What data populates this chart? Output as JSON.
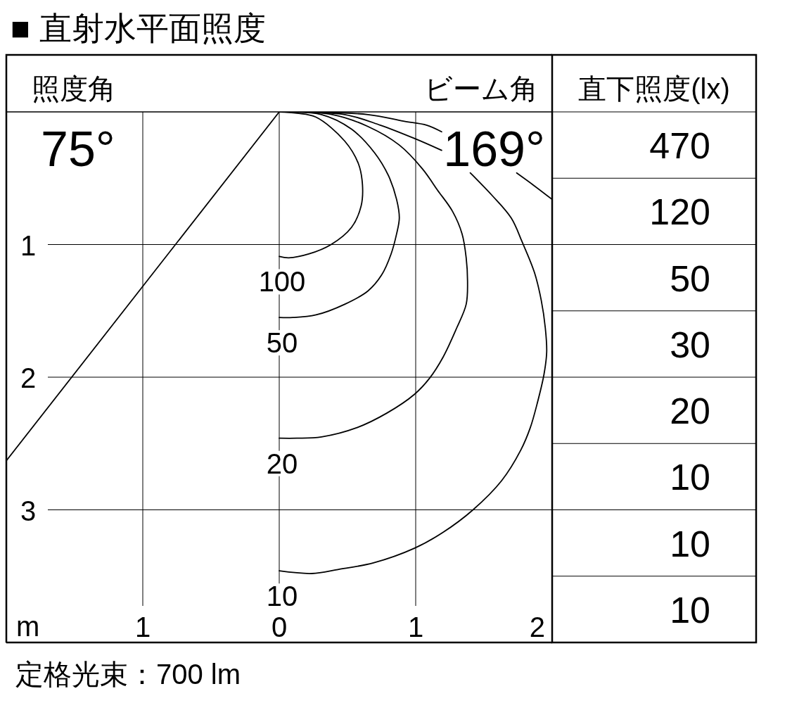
{
  "chart_data": [
    {
      "type": "line",
      "title": "■ 直射水平面照度",
      "xlabel": "m",
      "annotations": [
        "照度角",
        "75°",
        "ビーム角",
        "169°",
        "定格光束：700 lm"
      ],
      "xlim": [
        -2,
        2
      ],
      "xticks": [
        {
          "value": -1,
          "label": "1"
        },
        0,
        1,
        2
      ],
      "ylim": [
        4,
        0
      ],
      "yticks": [
        1,
        2,
        3
      ],
      "grid": true,
      "series": [
        {
          "name": "100",
          "color": "#000000",
          "x": [
            0,
            0.13,
            0.27,
            0.48,
            0.58,
            0.61,
            0.6,
            0.53,
            0.38,
            0.22,
            0.07,
            0
          ],
          "values": [
            0,
            0.01,
            0.04,
            0.22,
            0.39,
            0.55,
            0.71,
            0.87,
            1.0,
            1.07,
            1.1,
            1.09
          ]
        },
        {
          "name": "50",
          "color": "#000000",
          "x": [
            0,
            0.31,
            0.53,
            0.7,
            0.8,
            0.86,
            0.88,
            0.86,
            0.82,
            0.75,
            0.65,
            0.48,
            0.27,
            0.1,
            0
          ],
          "values": [
            0,
            0.02,
            0.13,
            0.31,
            0.48,
            0.66,
            0.8,
            0.92,
            1.07,
            1.23,
            1.35,
            1.45,
            1.53,
            1.55,
            1.55
          ]
        },
        {
          "name": "20",
          "color": "#000000",
          "x": [
            0,
            0.39,
            0.65,
            0.88,
            1.05,
            1.16,
            1.27,
            1.34,
            1.37,
            1.38,
            1.37,
            1.3,
            1.2,
            1.1,
            0.99,
            0.79,
            0.57,
            0.31,
            0.13,
            0
          ],
          "values": [
            0,
            0.02,
            0.11,
            0.25,
            0.43,
            0.59,
            0.75,
            0.92,
            1.1,
            1.28,
            1.45,
            1.63,
            1.85,
            2.01,
            2.13,
            2.27,
            2.38,
            2.45,
            2.46,
            2.46
          ]
        },
        {
          "name": "10",
          "color": "#000000",
          "x": [
            0,
            0.48,
            0.74,
            0.99,
            1.19,
            1.3,
            1.4,
            1.56,
            1.7,
            1.78,
            1.87,
            1.92,
            1.95,
            1.96,
            1.94,
            1.89,
            1.84,
            1.77,
            1.63,
            1.42,
            1.2,
            0.99,
            0.69,
            0.43,
            0.24,
            0
          ],
          "values": [
            0,
            0.02,
            0.1,
            0.2,
            0.29,
            null,
            0.46,
            0.63,
            0.8,
            0.98,
            1.21,
            1.42,
            1.63,
            1.81,
            1.98,
            2.2,
            2.38,
            2.55,
            2.78,
            3.0,
            3.17,
            3.29,
            3.4,
            3.45,
            3.48,
            3.46
          ]
        },
        {
          "color": "#000000",
          "x": [
            0,
            0.65,
            0.91,
            1.08,
            1.19,
            1.5,
            1.74,
            1.86,
            2.0
          ],
          "values": [
            0,
            0.02,
            0.07,
            0.1,
            0.15,
            null,
            0.46,
            0.55,
            0.66
          ]
        },
        {
          "color": "#000000",
          "x": [
            0,
            -2
          ],
          "values": [
            0,
            2.63
          ]
        }
      ]
    },
    {
      "type": "other",
      "title": "直下照度(lx)",
      "values": [
        470,
        120,
        50,
        30,
        20,
        10,
        10,
        10
      ],
      "data_labels": true
    }
  ]
}
